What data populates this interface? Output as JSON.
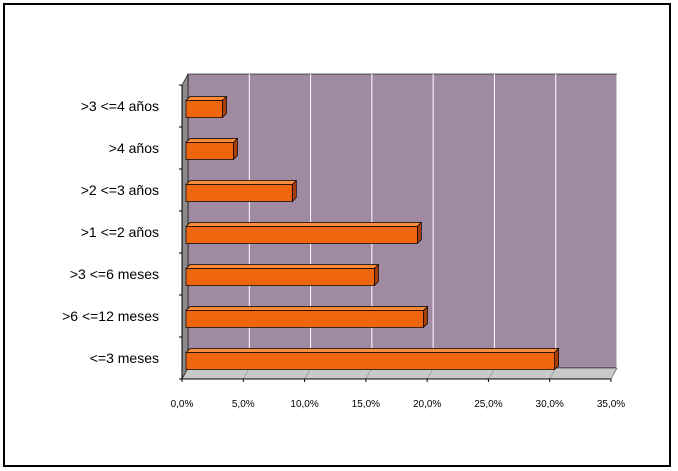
{
  "chart_data": {
    "type": "bar",
    "orientation": "horizontal",
    "categories": [
      ">3 <=4 años",
      ">4 años",
      ">2 <=3 años",
      ">1 <=2 años",
      ">3 <=6 meses",
      ">6 <=12 meses",
      "<=3 meses"
    ],
    "values": [
      3.3,
      4.2,
      9.0,
      19.2,
      15.7,
      19.7,
      30.4
    ],
    "xlim": [
      0,
      35
    ],
    "xticks": [
      0,
      5,
      10,
      15,
      20,
      25,
      30,
      35
    ],
    "xtick_labels": [
      "0,0%",
      "5,0%",
      "10,0%",
      "15,0%",
      "20,0%",
      "25,0%",
      "30,0%",
      "35,0%"
    ],
    "grid": true,
    "style": "3d",
    "colors": {
      "plot_wall": "#a08aa2",
      "plot_side": "#8a8a8a",
      "floor": "#c9c9c9",
      "bar_front": "#f0660e",
      "bar_top": "#ff8a3a",
      "bar_side": "#a83f08",
      "grid": "#ffffff"
    }
  }
}
